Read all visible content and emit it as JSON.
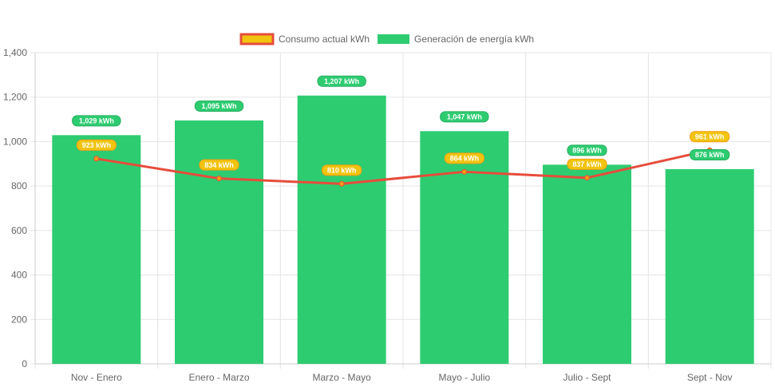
{
  "chart_data": {
    "type": "bar",
    "categories": [
      "Nov - Enero",
      "Enero - Marzo",
      "Marzo - Mayo",
      "Mayo - Julio",
      "Julio - Sept",
      "Sept - Nov"
    ],
    "series": [
      {
        "name": "Consumo actual kWh",
        "type": "line",
        "values": [
          923,
          834,
          810,
          864,
          837,
          961
        ],
        "labels": [
          "923 kWh",
          "834 kWh",
          "810 kWh",
          "864 kWh",
          "837 kWh",
          "961 kWh"
        ],
        "color": "#e74c3c",
        "legend_fill": "#f1c40f",
        "label_bg": "#f1c40f",
        "label_border": "#f39c12"
      },
      {
        "name": "Generación de energía kWh",
        "type": "bar",
        "values": [
          1029,
          1095,
          1207,
          1047,
          896,
          876
        ],
        "labels": [
          "1,029 kWh",
          "1,095 kWh",
          "1,207 kWh",
          "1,047 kWh",
          "896 kWh",
          "876 kWh"
        ],
        "color": "#2ecc71",
        "label_bg": "#2ecc71",
        "label_border": "#27ae60"
      }
    ],
    "yticks": [
      "0",
      "200",
      "400",
      "600",
      "800",
      "1,000",
      "1,200",
      "1,400"
    ],
    "ytick_values": [
      0,
      200,
      400,
      600,
      800,
      1000,
      1200,
      1400
    ],
    "ylim": [
      0,
      1400
    ],
    "grid": true,
    "legend_position": "top"
  }
}
